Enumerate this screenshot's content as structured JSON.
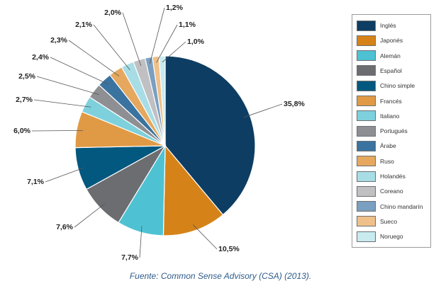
{
  "chart_data": {
    "type": "pie",
    "slices": [
      {
        "label": "Inglés",
        "value": 35.8,
        "value_text": "35,8%",
        "color": "#0d3d63"
      },
      {
        "label": "Japonés",
        "value": 10.5,
        "value_text": "10,5%",
        "color": "#d58319"
      },
      {
        "label": "Alemán",
        "value": 7.7,
        "value_text": "7,7%",
        "color": "#4ec2d3"
      },
      {
        "label": "Español",
        "value": 7.6,
        "value_text": "7,6%",
        "color": "#6c6d71"
      },
      {
        "label": "Chino simple",
        "value": 7.1,
        "value_text": "7,1%",
        "color": "#02587f"
      },
      {
        "label": "Francés",
        "value": 6.0,
        "value_text": "6,0%",
        "color": "#e09a45"
      },
      {
        "label": "Italiano",
        "value": 2.7,
        "value_text": "2,7%",
        "color": "#7ed0dc"
      },
      {
        "label": "Portugués",
        "value": 2.5,
        "value_text": "2,5%",
        "color": "#8e8f93"
      },
      {
        "label": "Árabe",
        "value": 2.4,
        "value_text": "2,4%",
        "color": "#3a73a0"
      },
      {
        "label": "Ruso",
        "value": 2.3,
        "value_text": "2,3%",
        "color": "#e5a85e"
      },
      {
        "label": "Holandés",
        "value": 2.1,
        "value_text": "2,1%",
        "color": "#a8dde6"
      },
      {
        "label": "Coreano",
        "value": 2.0,
        "value_text": "2,0%",
        "color": "#c0c0c2"
      },
      {
        "label": "Chino mandarín",
        "value": 1.2,
        "value_text": "1,2%",
        "color": "#7a9fc0"
      },
      {
        "label": "Sueco",
        "value": 1.1,
        "value_text": "1,1%",
        "color": "#efc08a"
      },
      {
        "label": "Noruego",
        "value": 1.0,
        "value_text": "1,0%",
        "color": "#c8ebf0"
      }
    ],
    "legend_position": "right"
  },
  "source": "Fuente: Common Sense Advisory (CSA) (2013)."
}
